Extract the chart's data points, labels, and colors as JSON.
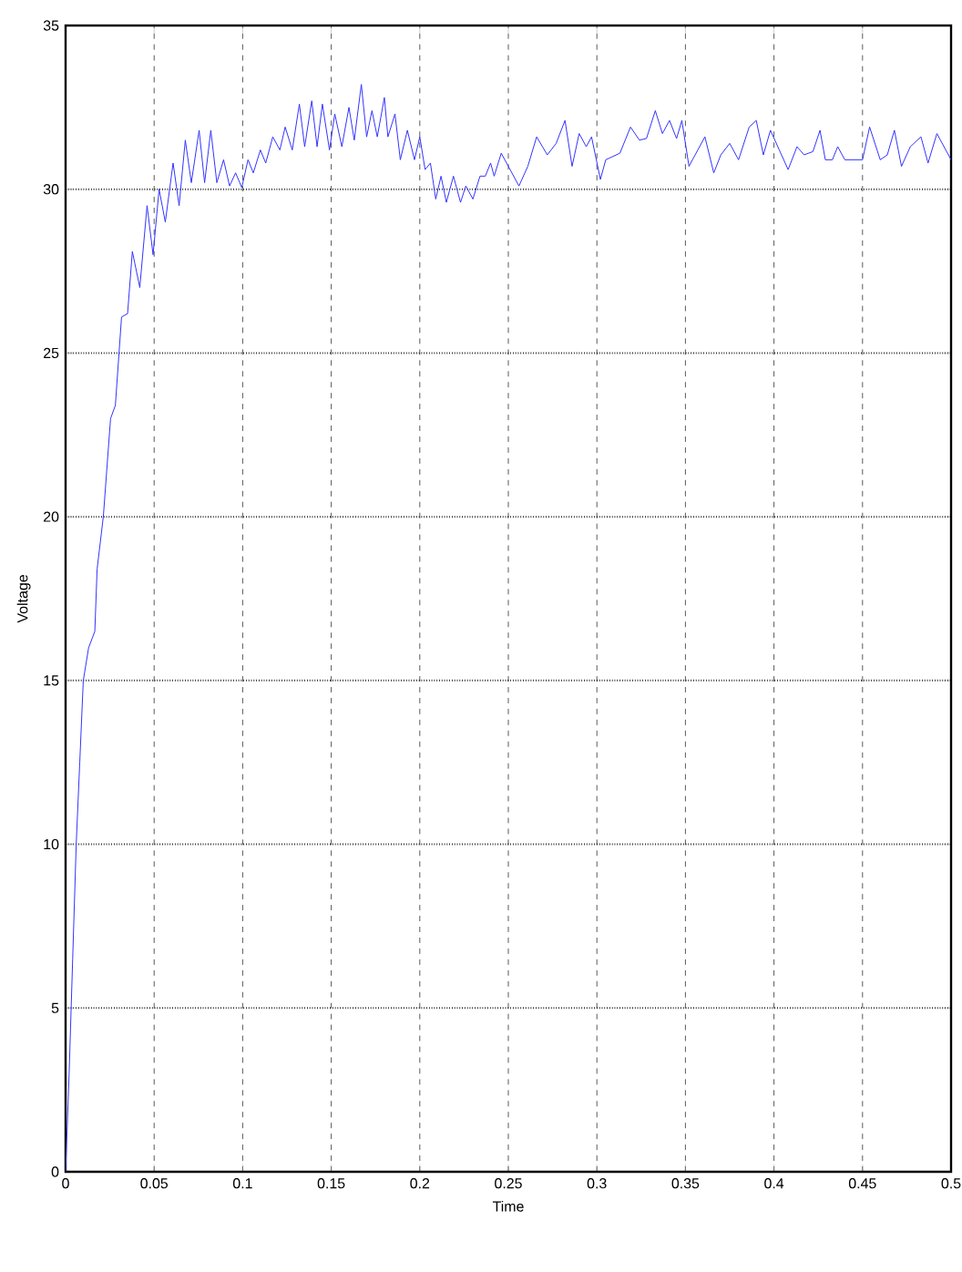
{
  "chart_data": {
    "type": "line",
    "xlabel": "Time",
    "ylabel": "Voltage",
    "xlim": [
      0,
      0.5
    ],
    "ylim": [
      0,
      35
    ],
    "xticks": [
      0,
      0.05,
      0.1,
      0.15,
      0.2,
      0.25,
      0.3,
      0.35,
      0.4,
      0.45,
      0.5
    ],
    "yticks": [
      0,
      5,
      10,
      15,
      20,
      25,
      30,
      35
    ],
    "grid": true,
    "marker": "none",
    "line_style": "solid",
    "series": [
      {
        "color": "#3333ff",
        "x": [
          0,
          0.002,
          0.004,
          0.006,
          0.008,
          0.01,
          0.013,
          0.0165,
          0.0178,
          0.0213,
          0.0254,
          0.0281,
          0.0316,
          0.035,
          0.0377,
          0.0419,
          0.046,
          0.0494,
          0.0528,
          0.0563,
          0.0607,
          0.0641,
          0.0676,
          0.071,
          0.0754,
          0.0785,
          0.082,
          0.0854,
          0.0892,
          0.0926,
          0.096,
          0.0995,
          0.103,
          0.106,
          0.11,
          0.113,
          0.117,
          0.121,
          0.124,
          0.128,
          0.132,
          0.135,
          0.139,
          0.142,
          0.145,
          0.149,
          0.152,
          0.156,
          0.16,
          0.163,
          0.167,
          0.17,
          0.173,
          0.176,
          0.18,
          0.182,
          0.186,
          0.189,
          0.193,
          0.197,
          0.2,
          0.203,
          0.206,
          0.209,
          0.212,
          0.215,
          0.219,
          0.223,
          0.226,
          0.23,
          0.234,
          0.237,
          0.24,
          0.242,
          0.246,
          0.251,
          0.256,
          0.261,
          0.266,
          0.272,
          0.277,
          0.282,
          0.286,
          0.29,
          0.294,
          0.297,
          0.302,
          0.305,
          0.313,
          0.319,
          0.324,
          0.328,
          0.333,
          0.337,
          0.341,
          0.345,
          0.348,
          0.352,
          0.357,
          0.361,
          0.366,
          0.37,
          0.375,
          0.38,
          0.386,
          0.39,
          0.394,
          0.398,
          0.403,
          0.408,
          0.413,
          0.417,
          0.422,
          0.426,
          0.429,
          0.433,
          0.436,
          0.44,
          0.445,
          0.45,
          0.454,
          0.46,
          0.464,
          0.468,
          0.472,
          0.477,
          0.483,
          0.487,
          0.492,
          0.496,
          0.5
        ],
        "values": [
          0,
          3,
          6.5,
          10,
          12.5,
          15,
          16,
          16.5,
          18.4,
          20,
          23,
          23.4,
          26.1,
          26.2,
          28.1,
          27,
          29.5,
          28,
          30,
          29,
          30.8,
          29.5,
          31.5,
          30.2,
          31.8,
          30.2,
          31.8,
          30.2,
          30.9,
          30.1,
          30.5,
          30.05,
          30.9,
          30.5,
          31.2,
          30.8,
          31.6,
          31.2,
          31.9,
          31.2,
          32.6,
          31.3,
          32.7,
          31.3,
          32.6,
          31.2,
          32.3,
          31.3,
          32.5,
          31.5,
          33.2,
          31.6,
          32.4,
          31.6,
          32.8,
          31.6,
          32.3,
          30.9,
          31.8,
          30.9,
          31.6,
          30.6,
          30.8,
          29.7,
          30.4,
          29.6,
          30.4,
          29.6,
          30.1,
          29.7,
          30.4,
          30.4,
          30.8,
          30.4,
          31.1,
          30.6,
          30.1,
          30.7,
          31.6,
          31.05,
          31.4,
          32.1,
          30.7,
          31.7,
          31.3,
          31.6,
          30.3,
          30.9,
          31.1,
          31.9,
          31.5,
          31.55,
          32.4,
          31.7,
          32.1,
          31.55,
          32.1,
          30.7,
          31.2,
          31.6,
          30.5,
          31.05,
          31.4,
          30.9,
          31.9,
          32.1,
          31.05,
          31.8,
          31.2,
          30.6,
          31.3,
          31.05,
          31.15,
          31.8,
          30.9,
          30.9,
          31.3,
          30.9,
          30.9,
          30.9,
          31.9,
          30.9,
          31.05,
          31.8,
          30.7,
          31.3,
          31.6,
          30.8,
          31.7,
          31.3,
          30.9
        ]
      }
    ]
  }
}
